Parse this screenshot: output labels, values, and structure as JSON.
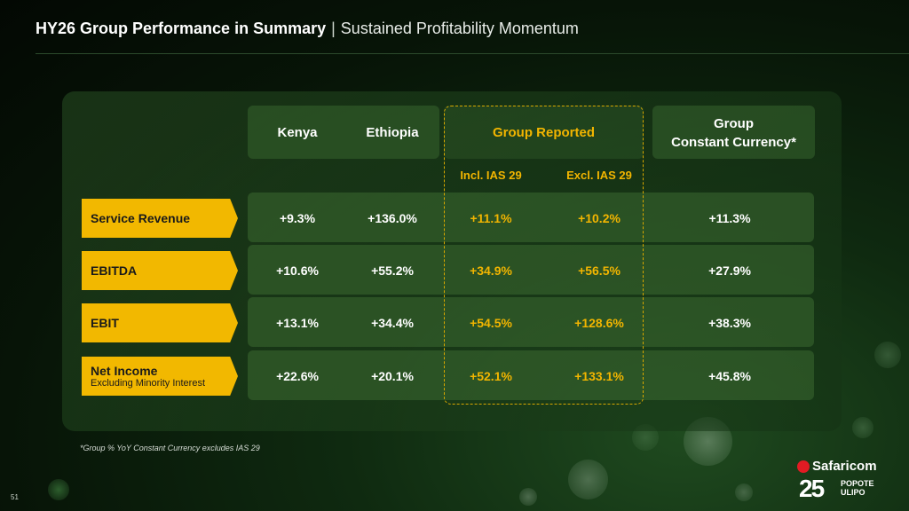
{
  "header": {
    "title": "HY26 Group Performance in Summary",
    "separator": "|",
    "subtitle": "Sustained Profitability Momentum"
  },
  "columns": {
    "kenya": "Kenya",
    "ethiopia": "Ethiopia",
    "group_reported": "Group Reported",
    "incl_ias": "Incl. IAS 29",
    "excl_ias": "Excl. IAS 29",
    "group_cc_line1": "Group",
    "group_cc_line2": "Constant Currency*"
  },
  "rows": [
    {
      "label": "Service Revenue",
      "sublabel": "",
      "kenya": "+9.3%",
      "ethiopia": "+136.0%",
      "incl": "+11.1%",
      "excl": "+10.2%",
      "cc": "+11.3%"
    },
    {
      "label": "EBITDA",
      "sublabel": "",
      "kenya": "+10.6%",
      "ethiopia": "+55.2%",
      "incl": "+34.9%",
      "excl": "+56.5%",
      "cc": "+27.9%"
    },
    {
      "label": "EBIT",
      "sublabel": "",
      "kenya": "+13.1%",
      "ethiopia": "+34.4%",
      "incl": "+54.5%",
      "excl": "+128.6%",
      "cc": "+38.3%"
    },
    {
      "label": "Net Income",
      "sublabel": "Excluding Minority Interest",
      "kenya": "+22.6%",
      "ethiopia": "+20.1%",
      "incl": "+52.1%",
      "excl": "+133.1%",
      "cc": "+45.8%"
    }
  ],
  "footnote": "*Group % YoY Constant Currency excludes IAS 29",
  "page_number": "51",
  "logo": {
    "brand": "Safaricom",
    "number": "25",
    "slogan_line1": "POPOTE",
    "slogan_line2": "ULIPO"
  },
  "colors": {
    "accent": "#f2b500",
    "label_bg": "#f2b800",
    "background": "#0f2a10"
  }
}
